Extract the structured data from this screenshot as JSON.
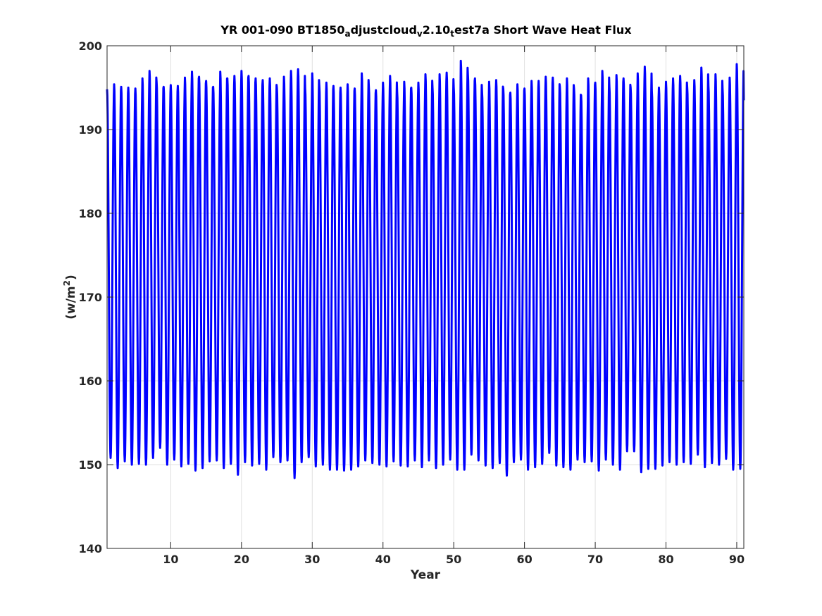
{
  "chart_data": {
    "type": "line",
    "title_parts": [
      {
        "text": "YR 001-090 BT1850",
        "sub": false
      },
      {
        "text": "a",
        "sub": true
      },
      {
        "text": "djustcloud",
        "sub": false
      },
      {
        "text": "v",
        "sub": true
      },
      {
        "text": "2.10",
        "sub": false
      },
      {
        "text": "t",
        "sub": true
      },
      {
        "text": "est7a Short Wave Heat Flux",
        "sub": false
      }
    ],
    "xlabel": "Year",
    "ylabel_parts": [
      {
        "text": "(w/m",
        "sup": false
      },
      {
        "text": "2",
        "sup": true
      },
      {
        "text": ")",
        "sup": false
      }
    ],
    "xlim": [
      1,
      91
    ],
    "ylim": [
      140,
      200
    ],
    "xticks": [
      10,
      20,
      30,
      40,
      50,
      60,
      70,
      80,
      90
    ],
    "yticks": [
      140,
      150,
      160,
      170,
      180,
      190,
      200
    ],
    "grid": true,
    "line_color": "#0000ff",
    "series": [
      {
        "x_start": 1,
        "cycle_length": 1,
        "annual_max": [
          194.8,
          195.4,
          195.1,
          195.0,
          194.9,
          196.1,
          197.0,
          195.7,
          195.1,
          195.3,
          195.2,
          196.2,
          196.9,
          196.3,
          195.8,
          195.1,
          196.9,
          196.1,
          196.4,
          197.0,
          196.4,
          196.1,
          195.9,
          196.1,
          195.0,
          196.3,
          197.0,
          197.2,
          194.9,
          196.7,
          195.2,
          195.6,
          195.2,
          195.0,
          195.4,
          194.9,
          196.7,
          195.1,
          194.7,
          195.6,
          196.4,
          194.5,
          195.7,
          195.0,
          195.6,
          196.6,
          195.0,
          196.6,
          196.8,
          195.0,
          198.2,
          196.6,
          196.1,
          194.5,
          195.7,
          195.9,
          194.9,
          194.4,
          195.4,
          194.9,
          195.8,
          195.8,
          196.3,
          196.2,
          195.1,
          196.1,
          194.9,
          194.1,
          196.1,
          195.6,
          197.0,
          195.1,
          196.5,
          196.1,
          195.0,
          196.7,
          197.5,
          194.6,
          195.0,
          195.7,
          196.1,
          196.4,
          195.0,
          195.9,
          197.4,
          195.2,
          196.6,
          194.8,
          196.2,
          197.8
        ],
        "annual_min": [
          150.8,
          149.6,
          150.4,
          150.0,
          150.1,
          150.0,
          150.8,
          152.0,
          150.0,
          150.6,
          149.8,
          150.1,
          149.3,
          149.6,
          150.4,
          150.5,
          149.6,
          150.1,
          148.8,
          150.3,
          149.9,
          150.1,
          149.4,
          150.9,
          150.3,
          150.5,
          148.4,
          150.3,
          150.9,
          149.8,
          150.0,
          149.4,
          149.4,
          149.3,
          149.4,
          149.8,
          150.5,
          150.2,
          150.0,
          149.8,
          150.4,
          149.9,
          149.8,
          150.5,
          149.7,
          150.5,
          149.6,
          150.0,
          150.6,
          149.4,
          149.4,
          151.2,
          150.5,
          149.9,
          149.6,
          150.2,
          148.7,
          150.3,
          150.6,
          149.4,
          149.7,
          150.1,
          151.4,
          149.9,
          149.7,
          149.4,
          150.6,
          150.3,
          150.4,
          149.3,
          150.6,
          150.0,
          149.4,
          151.6,
          151.6,
          149.1,
          149.5,
          149.5,
          149.9,
          150.3,
          150.0,
          150.3,
          150.1,
          151.2,
          149.7,
          150.2,
          150.0,
          150.7,
          149.4,
          149.5
        ],
        "end_value": 193.5
      }
    ]
  }
}
